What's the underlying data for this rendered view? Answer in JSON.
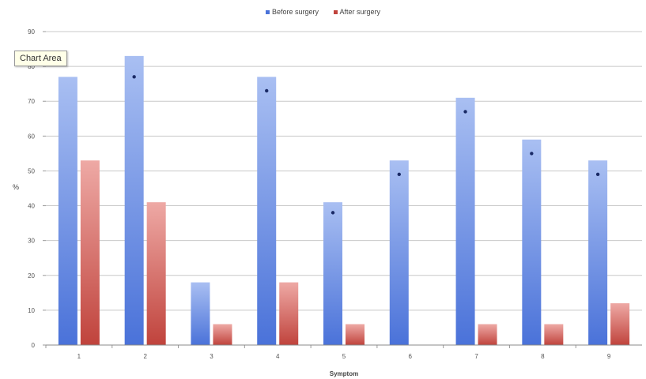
{
  "tooltip": "Chart Area",
  "legend": {
    "before_label": "Before surgery",
    "after_label": "After surgery"
  },
  "colors": {
    "before_top": "#a9bff2",
    "before_bottom": "#4a72d9",
    "after_top": "#eea9a5",
    "after_bottom": "#c0433c",
    "grid": "#c8c8c8",
    "marker": "#1a2a66"
  },
  "chart_data": {
    "type": "bar",
    "categories": [
      "1",
      "2",
      "3",
      "4",
      "5",
      "6",
      "7",
      "8",
      "9"
    ],
    "series": [
      {
        "name": "Before surgery",
        "values": [
          77,
          83,
          18,
          77,
          41,
          53,
          71,
          59,
          53
        ]
      },
      {
        "name": "After surgery",
        "values": [
          53,
          41,
          6,
          18,
          6,
          0,
          6,
          6,
          12
        ]
      }
    ],
    "markers": [
      null,
      77,
      null,
      73,
      38,
      49,
      67,
      55,
      49
    ],
    "xlabel": "Symptom",
    "ylabel": "%",
    "ylim": [
      0,
      90
    ],
    "yticks": [
      0,
      10,
      20,
      30,
      40,
      50,
      60,
      70,
      80,
      90
    ],
    "grid": true,
    "legend_position": "top"
  }
}
